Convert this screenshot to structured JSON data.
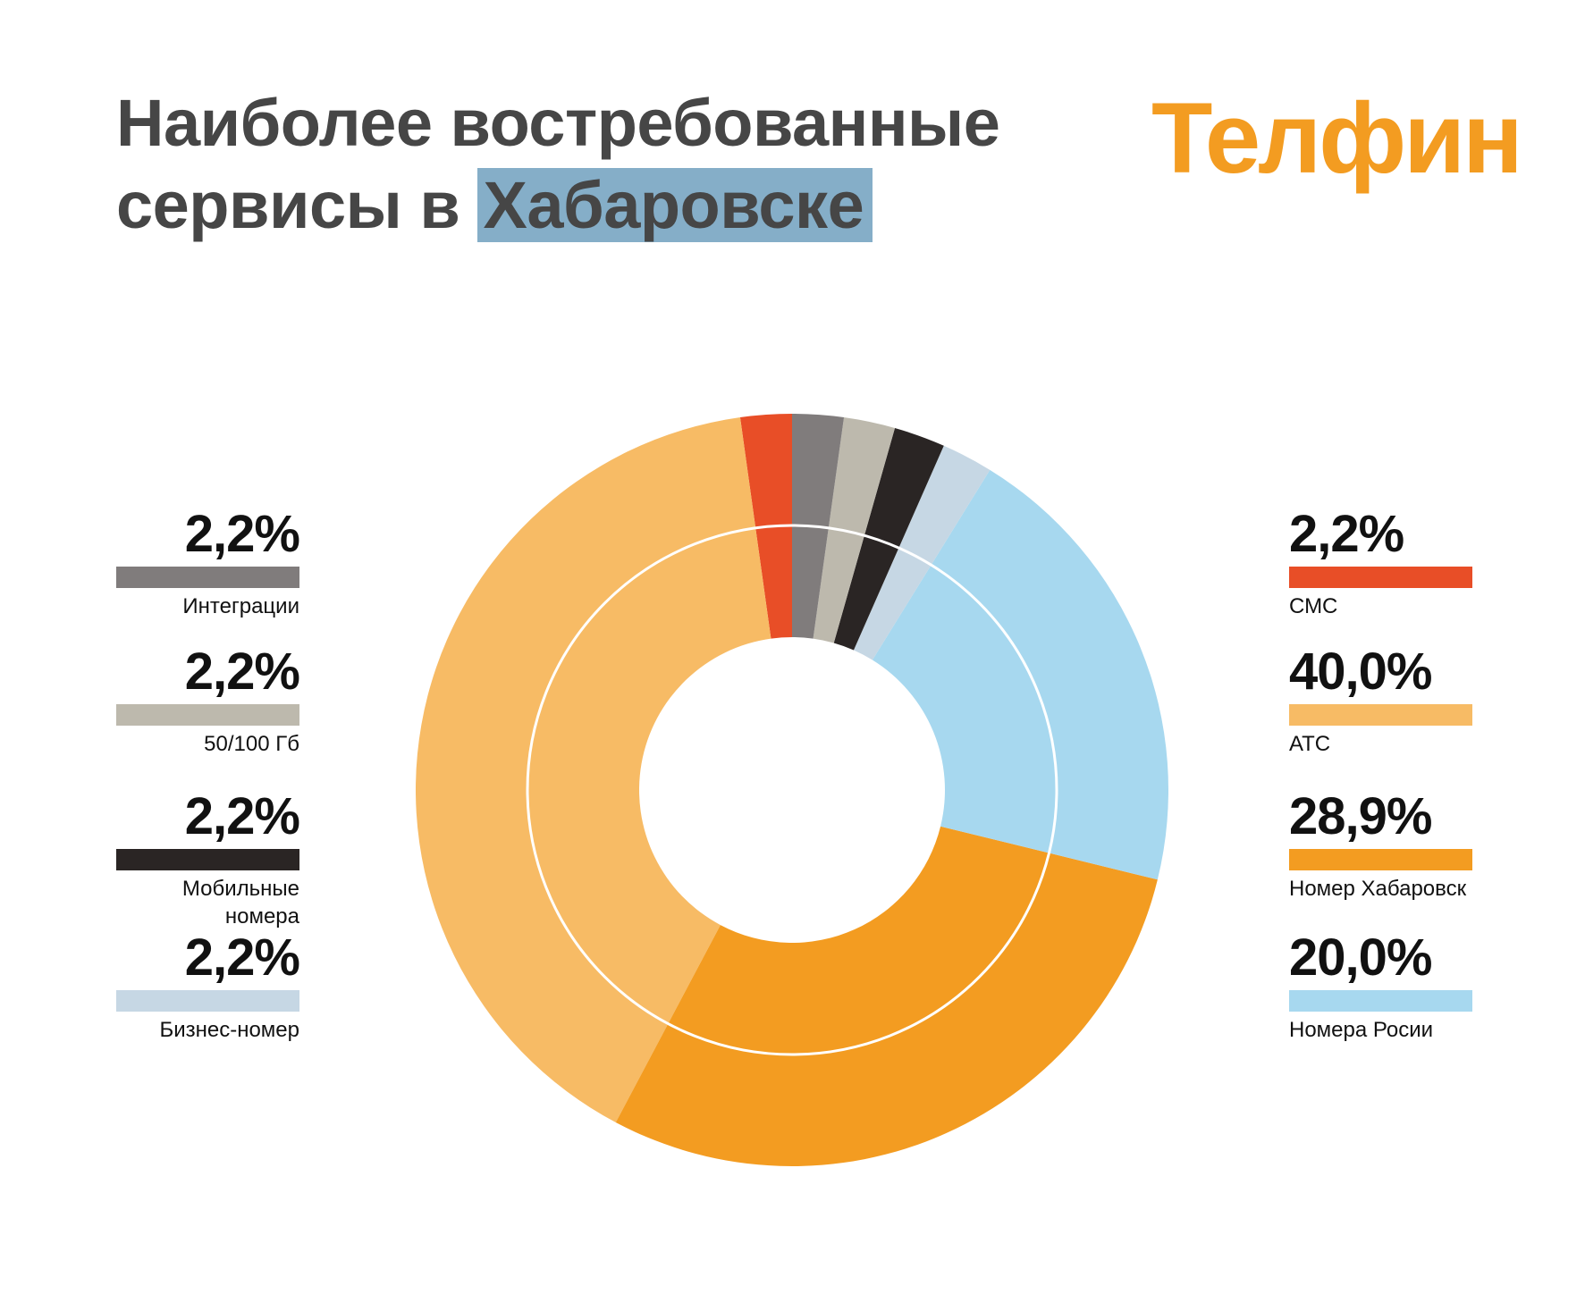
{
  "header": {
    "title_line1": "Наиболее востребованные",
    "title_line2_prefix": "сервисы в",
    "title_line2_highlight": "Хабаровске",
    "highlight_color": "#85aec8",
    "logo_text": "Телфин",
    "logo_color": "#f39c21"
  },
  "legend": {
    "left": [
      {
        "value_label": "2,2%",
        "name": "Интеграции",
        "color": "#807c7c"
      },
      {
        "value_label": "2,2%",
        "name": "50/100 Гб",
        "color": "#bdb9ad"
      },
      {
        "value_label": "2,2%",
        "name": "Мобильные номера",
        "color": "#2a2524"
      },
      {
        "value_label": "2,2%",
        "name": "Бизнес-номер",
        "color": "#c6d7e4"
      }
    ],
    "right": [
      {
        "value_label": "2,2%",
        "name": "СМС",
        "color": "#e84e27"
      },
      {
        "value_label": "40,0%",
        "name": "АТС",
        "color": "#f7bb65"
      },
      {
        "value_label": "28,9%",
        "name": "Номер Хабаровск",
        "color": "#f39c21"
      },
      {
        "value_label": "20,0%",
        "name": "Номера Росии",
        "color": "#a7d8ef"
      }
    ]
  },
  "chart_data": {
    "type": "pie",
    "variant": "donut",
    "slices": [
      {
        "label": "СМС",
        "value": 2.2,
        "color": "#e84e27"
      },
      {
        "label": "АТС",
        "value": 40.0,
        "color": "#f7bb65"
      },
      {
        "label": "Номер Хабаровск",
        "value": 28.9,
        "color": "#f39c21"
      },
      {
        "label": "Номера Росии",
        "value": 20.0,
        "color": "#a7d8ef"
      },
      {
        "label": "Бизнес-номер",
        "value": 2.2,
        "color": "#c6d7e4"
      },
      {
        "label": "Мобильные номера",
        "value": 2.2,
        "color": "#2a2524"
      },
      {
        "label": "50/100 Гб",
        "value": 2.2,
        "color": "#bdb9ad"
      },
      {
        "label": "Интеграции",
        "value": 2.2,
        "color": "#807c7c"
      }
    ],
    "start": "top",
    "direction": "counterclockwise",
    "legend_position": "left and right"
  }
}
